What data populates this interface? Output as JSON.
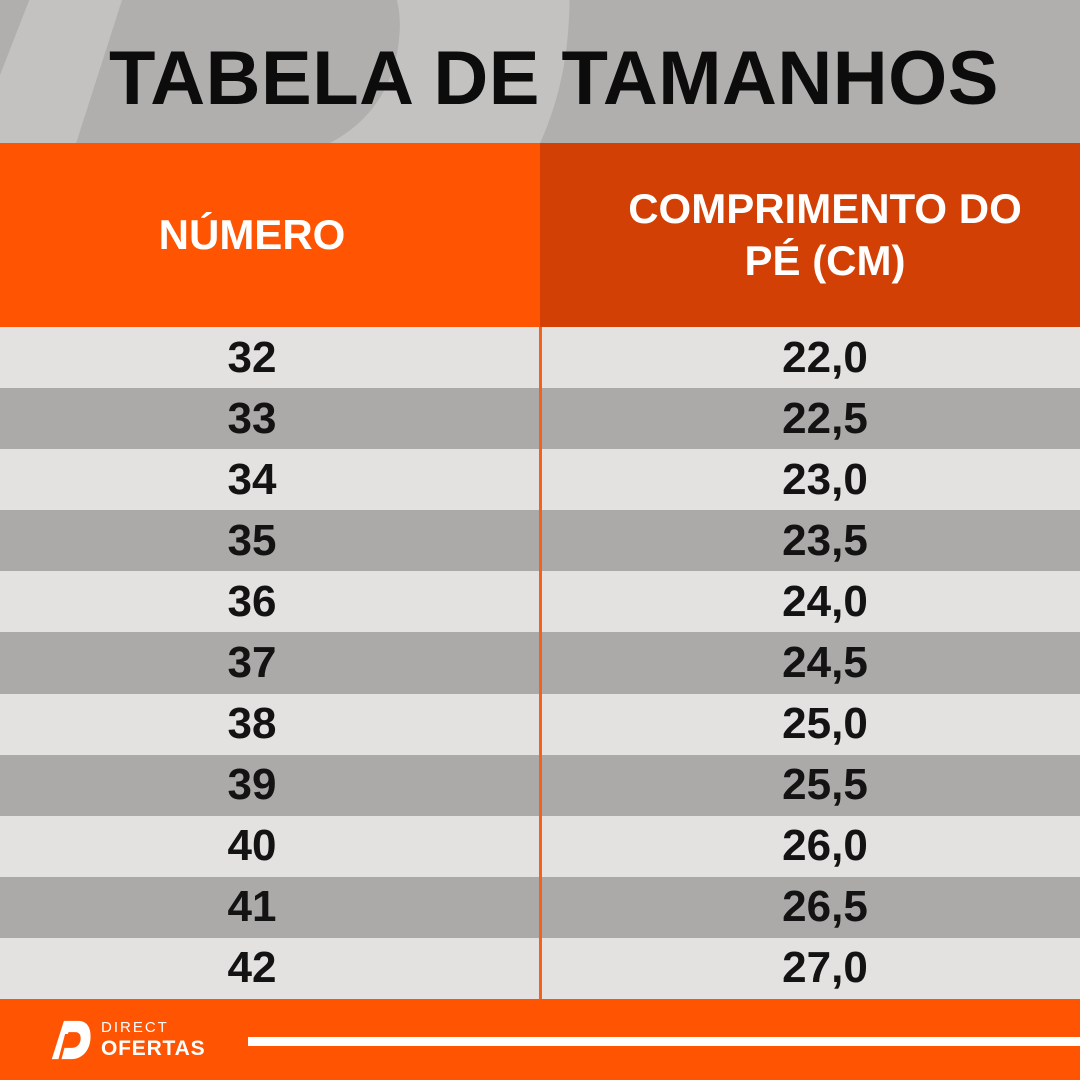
{
  "title": "TABELA DE TAMANHOS",
  "header": {
    "col1": "NÚMERO",
    "col2": "COMPRIMENTO DO PÉ (CM)"
  },
  "footer": {
    "brand_top": "DIRECT",
    "brand_bottom": "OFERTAS",
    "logo_icon": "direct-ofertas-d-logo"
  },
  "colors": {
    "background_gray": "#B0AFAD",
    "watermark_gray": "#C3C2C0",
    "orange_bright": "#FF5502",
    "orange_dark": "#D24005",
    "row_light": "#E3E2E0",
    "row_dark": "#ABAAA8",
    "column_divider_orange": "#F2621A",
    "title_black": "#0C0C0C",
    "white": "#FFFFFF"
  },
  "chart_data": {
    "type": "table",
    "title": "TABELA DE TAMANHOS",
    "columns": [
      "NÚMERO",
      "COMPRIMENTO DO PÉ (CM)"
    ],
    "rows": [
      [
        "32",
        "22,0"
      ],
      [
        "33",
        "22,5"
      ],
      [
        "34",
        "23,0"
      ],
      [
        "35",
        "23,5"
      ],
      [
        "36",
        "24,0"
      ],
      [
        "37",
        "24,5"
      ],
      [
        "38",
        "25,0"
      ],
      [
        "39",
        "25,5"
      ],
      [
        "40",
        "26,0"
      ],
      [
        "41",
        "26,5"
      ],
      [
        "42",
        "27,0"
      ]
    ],
    "layout": {
      "row_striping": [
        "light",
        "dark"
      ],
      "header_colors": [
        "#FF5502",
        "#D24005"
      ],
      "decimal_separator": ","
    }
  }
}
